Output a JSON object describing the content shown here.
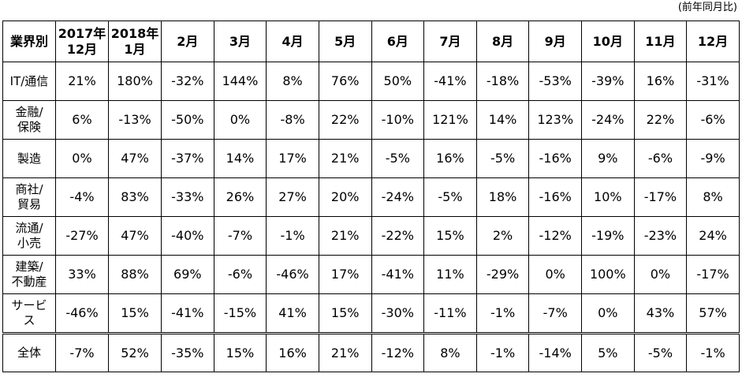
{
  "note": "(前年同月比)",
  "headers": [
    "業界別",
    "2017年12月",
    "2018年1月",
    "2月",
    "3月",
    "4月",
    "5月",
    "6月",
    "7月",
    "8月",
    "9月",
    "10月",
    "11月",
    "12月"
  ],
  "header_lines": [
    [
      "業界別"
    ],
    [
      "2017年",
      "12月"
    ],
    [
      "2018年",
      "1月"
    ],
    [
      "2月"
    ],
    [
      "3月"
    ],
    [
      "4月"
    ],
    [
      "5月"
    ],
    [
      "6月"
    ],
    [
      "7月"
    ],
    [
      "8月"
    ],
    [
      "9月"
    ],
    [
      "10月"
    ],
    [
      "11月"
    ],
    [
      "12月"
    ]
  ],
  "rows": [
    {
      "category": [
        "IT/通信"
      ],
      "values": [
        "21%",
        "180%",
        "-32%",
        "144%",
        "8%",
        "76%",
        "50%",
        "-41%",
        "-18%",
        "-53%",
        "-39%",
        "16%",
        "-31%"
      ]
    },
    {
      "category": [
        "金融/",
        "保険"
      ],
      "values": [
        "6%",
        "-13%",
        "-50%",
        "0%",
        "-8%",
        "22%",
        "-10%",
        "121%",
        "14%",
        "123%",
        "-24%",
        "22%",
        "-6%"
      ]
    },
    {
      "category": [
        "製造"
      ],
      "values": [
        "0%",
        "47%",
        "-37%",
        "14%",
        "17%",
        "21%",
        "-5%",
        "16%",
        "-5%",
        "-16%",
        "9%",
        "-6%",
        "-9%"
      ]
    },
    {
      "category": [
        "商社/",
        "貿易"
      ],
      "values": [
        "-4%",
        "83%",
        "-33%",
        "26%",
        "27%",
        "20%",
        "-24%",
        "-5%",
        "18%",
        "-16%",
        "10%",
        "-17%",
        "8%"
      ]
    },
    {
      "category": [
        "流通/",
        "小売"
      ],
      "values": [
        "-27%",
        "47%",
        "-40%",
        "-7%",
        "-1%",
        "21%",
        "-22%",
        "15%",
        "2%",
        "-12%",
        "-19%",
        "-23%",
        "24%"
      ]
    },
    {
      "category": [
        "建築/",
        "不動産"
      ],
      "values": [
        "33%",
        "88%",
        "69%",
        "-6%",
        "-46%",
        "17%",
        "-41%",
        "11%",
        "-29%",
        "0%",
        "100%",
        "0%",
        "-17%"
      ]
    },
    {
      "category": [
        "サービ",
        "ス"
      ],
      "values": [
        "-46%",
        "15%",
        "-41%",
        "-15%",
        "41%",
        "15%",
        "-30%",
        "-11%",
        "-1%",
        "-7%",
        "0%",
        "43%",
        "57%"
      ]
    }
  ],
  "total": {
    "category": [
      "全体"
    ],
    "values": [
      "-7%",
      "52%",
      "-35%",
      "15%",
      "16%",
      "21%",
      "-12%",
      "8%",
      "-1%",
      "-14%",
      "5%",
      "-5%",
      "-1%"
    ]
  }
}
